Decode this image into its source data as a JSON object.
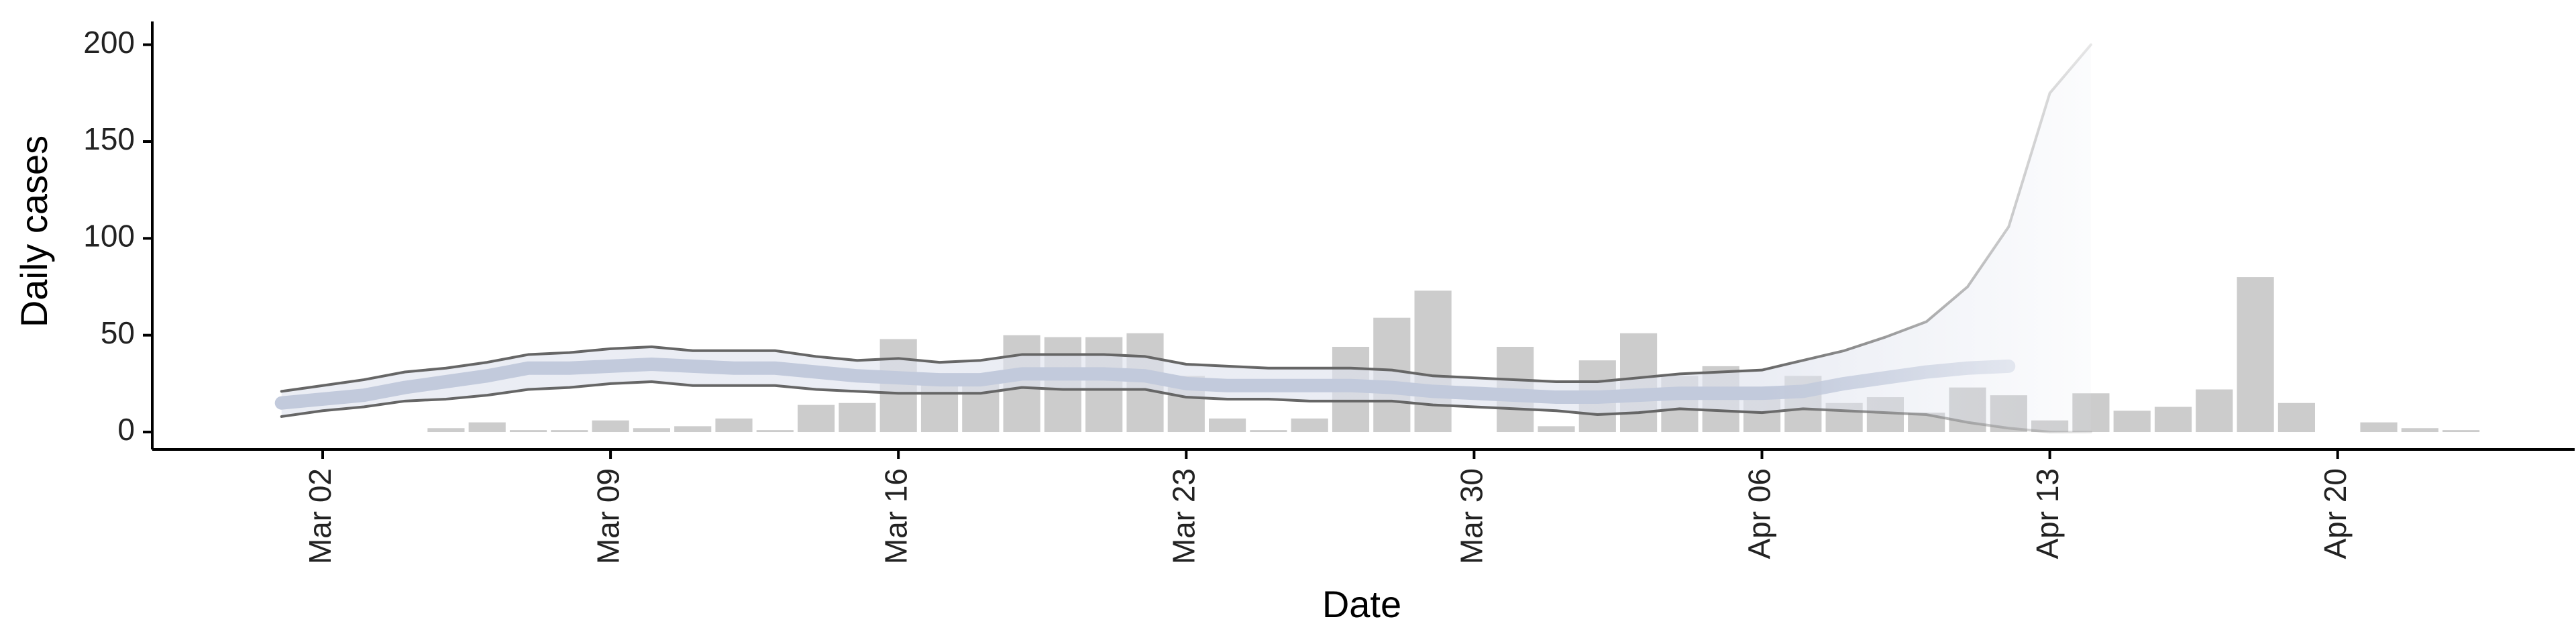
{
  "chart_data": {
    "type": "bar",
    "xlabel": "Date",
    "ylabel": "Daily cases",
    "categories": [
      null,
      "Mar 02",
      null,
      null,
      null,
      null,
      null,
      null,
      "Mar 09",
      null,
      null,
      null,
      null,
      null,
      null,
      "Mar 16",
      null,
      null,
      null,
      null,
      null,
      null,
      "Mar 23",
      null,
      null,
      null,
      null,
      null,
      null,
      "Mar 30",
      null,
      null,
      null,
      null,
      null,
      null,
      "Apr 06",
      null,
      null,
      null,
      null,
      null,
      null,
      "Apr 13",
      null,
      null,
      null,
      null,
      null,
      null,
      "Apr 20",
      null,
      null,
      null
    ],
    "values": [
      0,
      0,
      0,
      0,
      2,
      5,
      1,
      1,
      6,
      2,
      3,
      7,
      1,
      14,
      15,
      48,
      30,
      29,
      50,
      49,
      49,
      51,
      29,
      7,
      1,
      7,
      44,
      59,
      73,
      0,
      44,
      3,
      37,
      51,
      29,
      34,
      23,
      29,
      15,
      18,
      10,
      23,
      19,
      6,
      20,
      11,
      13,
      22,
      80,
      15,
      0,
      5,
      2,
      1
    ],
    "color": "#cccccc",
    "ribbon": {
      "upper": [
        21,
        24,
        27,
        31,
        33,
        36,
        40,
        41,
        43,
        44,
        42,
        42,
        42,
        39,
        37,
        38,
        36,
        37,
        40,
        40,
        40,
        39,
        35,
        34,
        33,
        33,
        33,
        32,
        29,
        28,
        27,
        26,
        26,
        28,
        30,
        31,
        32,
        37,
        42,
        49,
        57,
        75,
        106,
        175,
        200,
        null,
        null,
        null,
        null,
        null,
        null,
        null,
        null,
        null
      ],
      "lower": [
        8,
        11,
        13,
        16,
        17,
        19,
        22,
        23,
        25,
        26,
        24,
        24,
        24,
        22,
        21,
        20,
        20,
        20,
        23,
        22,
        22,
        22,
        18,
        17,
        17,
        16,
        16,
        16,
        14,
        13,
        12,
        11,
        9,
        10,
        12,
        11,
        10,
        12,
        11,
        10,
        9,
        5,
        2,
        0,
        0,
        null,
        null,
        null,
        null,
        null,
        null,
        null,
        null,
        null
      ],
      "median": [
        15,
        17,
        19,
        23,
        26,
        29,
        33,
        33,
        34,
        35,
        34,
        33,
        33,
        31,
        29,
        28,
        27,
        27,
        30,
        30,
        30,
        29,
        25,
        24,
        24,
        24,
        24,
        23,
        21,
        20,
        19,
        18,
        18,
        19,
        20,
        20,
        20,
        21,
        25,
        28,
        31,
        33,
        34,
        null,
        null,
        null,
        null,
        null,
        null,
        null,
        null,
        null,
        null,
        null
      ],
      "line_color": "#666666",
      "fill_color": "#dfe3ee",
      "median_color": "#c2cadc"
    },
    "ylim": [
      -9,
      212
    ],
    "yticks": [
      0,
      50,
      100,
      150,
      200
    ]
  }
}
